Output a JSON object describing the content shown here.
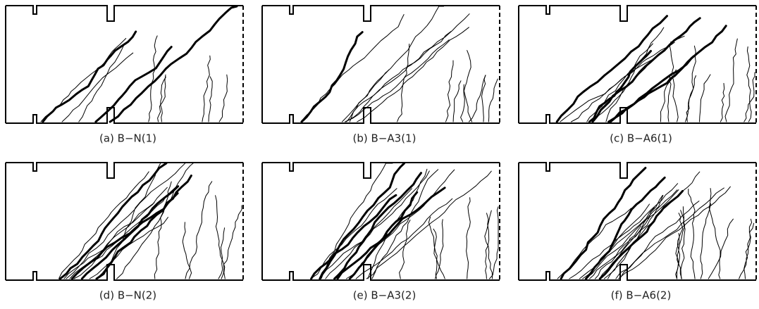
{
  "panels": [
    {
      "caption": "(a)  B−N(1)"
    },
    {
      "caption": "(b)  B−A3(1)"
    },
    {
      "caption": "(c)  B−A6(1)"
    },
    {
      "caption": "(d)  B−N(2)"
    },
    {
      "caption": "(e)  B−A3(2)"
    },
    {
      "caption": "(f)  B−A6(2)"
    }
  ]
}
